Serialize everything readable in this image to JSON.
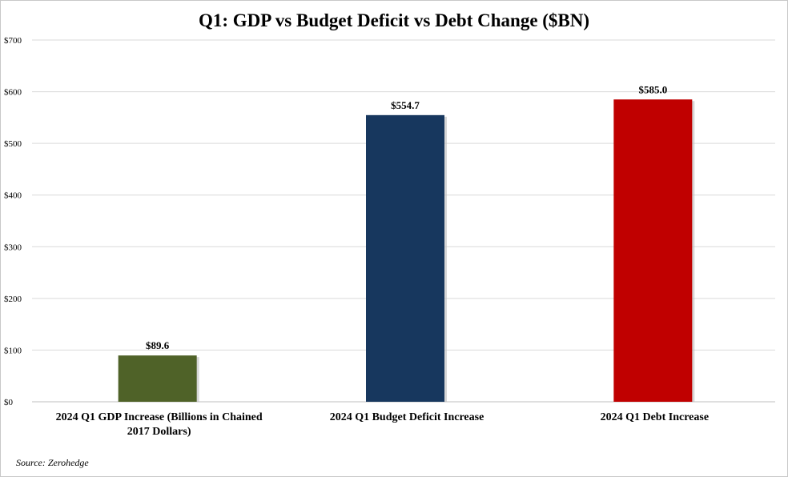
{
  "chart_data": {
    "type": "bar",
    "title": "Q1: GDP vs Budget Deficit vs Debt Change ($BN)",
    "categories": [
      [
        "2024 Q1 GDP Increase (Billions in Chained",
        "2017 Dollars)"
      ],
      [
        "2024 Q1 Budget Deficit Increase"
      ],
      [
        "2024 Q1 Debt Increase"
      ]
    ],
    "values": [
      89.6,
      554.7,
      585.0
    ],
    "data_labels": [
      "$89.6",
      "$554.7",
      "$585.0"
    ],
    "colors": [
      "#4f6228",
      "#17375e",
      "#c00000"
    ],
    "ylim": [
      0,
      700
    ],
    "yticks": [
      0,
      100,
      200,
      300,
      400,
      500,
      600,
      700
    ],
    "ytick_labels": [
      "$0",
      "$100",
      "$200",
      "$300",
      "$400",
      "$500",
      "$600",
      "$700"
    ],
    "grid": true,
    "legend": "none"
  },
  "source": "Source: Zerohedge"
}
